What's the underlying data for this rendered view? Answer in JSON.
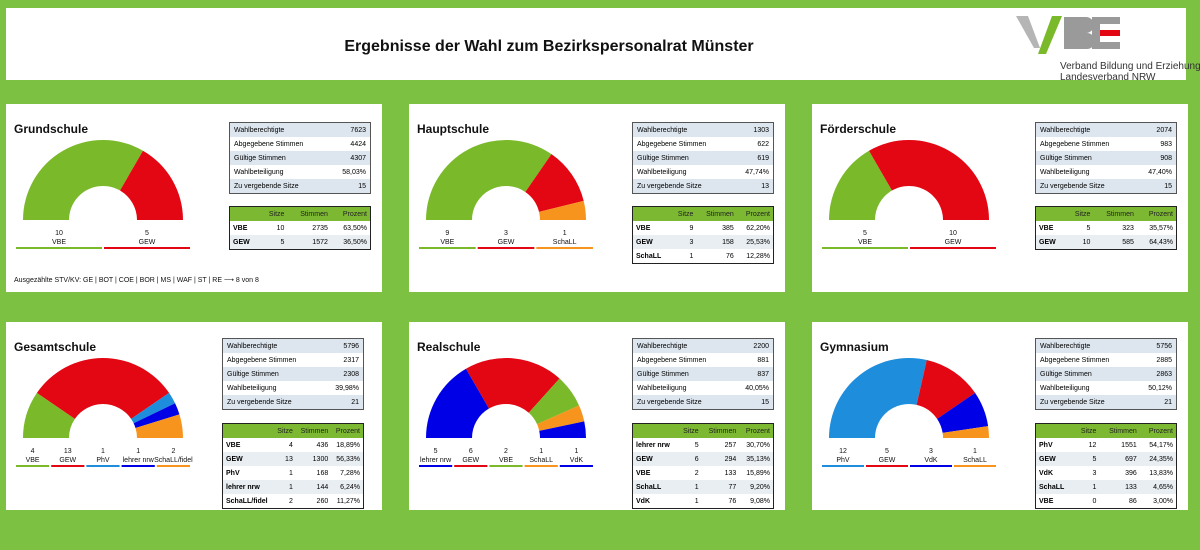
{
  "header": {
    "title": "Ergebnisse der Wahl zum Bezirkspersonalrat Münster",
    "logo_text": "VBE",
    "logo_line1": "Verband Bildung und Erziehung",
    "logo_line2": "Landesverband NRW"
  },
  "colors": {
    "VBE": "#7ab929",
    "GEW": "#e30613",
    "PhV": "#1e8ddc",
    "lehrer nrw": "#0000e6",
    "SchaLL": "#f7941d",
    "VdK": "#0000e6"
  },
  "stat_labels": [
    "Wahlberechtigte",
    "Abgegebene Stimmen",
    "Gültige Stimmen",
    "Wahlbeteiligung",
    "Zu vergebende Sitze"
  ],
  "result_headers": [
    "Sitze",
    "Stimmen",
    "Prozent"
  ],
  "panels": [
    {
      "title": "Grundschule",
      "stats": [
        "7623",
        "4424",
        "4307",
        "58,03%",
        "15"
      ],
      "results": [
        {
          "party": "VBE",
          "seats": "10",
          "votes": "2735",
          "pct": "63,50%"
        },
        {
          "party": "GEW",
          "seats": "5",
          "votes": "1572",
          "pct": "36,50%"
        }
      ],
      "chart_data": {
        "type": "pie",
        "shape": "half-donut",
        "series": [
          {
            "name": "VBE",
            "value": 10,
            "color": "#7ab929"
          },
          {
            "name": "GEW",
            "value": 5,
            "color": "#e30613"
          }
        ]
      },
      "note": "Ausgezählte STV/KV: GE | BOT | COE | BOR | MS | WAF | ST | RE ⟶ 8 von 8"
    },
    {
      "title": "Hauptschule",
      "stats": [
        "1303",
        "622",
        "619",
        "47,74%",
        "13"
      ],
      "results": [
        {
          "party": "VBE",
          "seats": "9",
          "votes": "385",
          "pct": "62,20%"
        },
        {
          "party": "GEW",
          "seats": "3",
          "votes": "158",
          "pct": "25,53%"
        },
        {
          "party": "SchaLL",
          "seats": "1",
          "votes": "76",
          "pct": "12,28%"
        }
      ],
      "chart_data": {
        "type": "pie",
        "shape": "half-donut",
        "series": [
          {
            "name": "VBE",
            "value": 9,
            "color": "#7ab929"
          },
          {
            "name": "GEW",
            "value": 3,
            "color": "#e30613"
          },
          {
            "name": "SchaLL",
            "value": 1,
            "color": "#f7941d"
          }
        ]
      }
    },
    {
      "title": "Förderschule",
      "stats": [
        "2074",
        "983",
        "908",
        "47,40%",
        "15"
      ],
      "results": [
        {
          "party": "VBE",
          "seats": "5",
          "votes": "323",
          "pct": "35,57%"
        },
        {
          "party": "GEW",
          "seats": "10",
          "votes": "585",
          "pct": "64,43%"
        }
      ],
      "chart_data": {
        "type": "pie",
        "shape": "half-donut",
        "series": [
          {
            "name": "VBE",
            "value": 5,
            "color": "#7ab929"
          },
          {
            "name": "GEW",
            "value": 10,
            "color": "#e30613"
          }
        ]
      }
    },
    {
      "title": "Gesamtschule",
      "stats": [
        "5796",
        "2317",
        "2308",
        "39,98%",
        "21"
      ],
      "results": [
        {
          "party": "VBE",
          "seats": "4",
          "votes": "436",
          "pct": "18,89%"
        },
        {
          "party": "GEW",
          "seats": "13",
          "votes": "1300",
          "pct": "56,33%"
        },
        {
          "party": "PhV",
          "seats": "1",
          "votes": "168",
          "pct": "7,28%"
        },
        {
          "party": "lehrer nrw",
          "seats": "1",
          "votes": "144",
          "pct": "6,24%"
        },
        {
          "party": "SchaLL/fidel",
          "seats": "2",
          "votes": "260",
          "pct": "11,27%"
        }
      ],
      "chart_data": {
        "type": "pie",
        "shape": "half-donut",
        "series": [
          {
            "name": "VBE",
            "value": 4,
            "color": "#7ab929"
          },
          {
            "name": "GEW",
            "value": 13,
            "color": "#e30613"
          },
          {
            "name": "PhV",
            "value": 1,
            "color": "#1e8ddc"
          },
          {
            "name": "lehrer nrw",
            "value": 1,
            "color": "#0000e6"
          },
          {
            "name": "SchaLL/fidel",
            "value": 2,
            "color": "#f7941d"
          }
        ]
      }
    },
    {
      "title": "Realschule",
      "stats": [
        "2200",
        "881",
        "837",
        "40,05%",
        "15"
      ],
      "results": [
        {
          "party": "lehrer nrw",
          "seats": "5",
          "votes": "257",
          "pct": "30,70%"
        },
        {
          "party": "GEW",
          "seats": "6",
          "votes": "294",
          "pct": "35,13%"
        },
        {
          "party": "VBE",
          "seats": "2",
          "votes": "133",
          "pct": "15,89%"
        },
        {
          "party": "SchaLL",
          "seats": "1",
          "votes": "77",
          "pct": "9,20%"
        },
        {
          "party": "VdK",
          "seats": "1",
          "votes": "76",
          "pct": "9,08%"
        }
      ],
      "chart_data": {
        "type": "pie",
        "shape": "half-donut",
        "series": [
          {
            "name": "lehrer nrw",
            "value": 5,
            "color": "#0000e6"
          },
          {
            "name": "GEW",
            "value": 6,
            "color": "#e30613"
          },
          {
            "name": "VBE",
            "value": 2,
            "color": "#7ab929"
          },
          {
            "name": "SchaLL",
            "value": 1,
            "color": "#f7941d"
          },
          {
            "name": "VdK",
            "value": 1,
            "color": "#0000e6"
          }
        ]
      }
    },
    {
      "title": "Gymnasium",
      "stats": [
        "5756",
        "2885",
        "2863",
        "50,12%",
        "21"
      ],
      "results": [
        {
          "party": "PhV",
          "seats": "12",
          "votes": "1551",
          "pct": "54,17%"
        },
        {
          "party": "GEW",
          "seats": "5",
          "votes": "697",
          "pct": "24,35%"
        },
        {
          "party": "VdK",
          "seats": "3",
          "votes": "396",
          "pct": "13,83%"
        },
        {
          "party": "SchaLL",
          "seats": "1",
          "votes": "133",
          "pct": "4,65%"
        },
        {
          "party": "VBE",
          "seats": "0",
          "votes": "86",
          "pct": "3,00%"
        }
      ],
      "chart_data": {
        "type": "pie",
        "shape": "half-donut",
        "series": [
          {
            "name": "PhV",
            "value": 12,
            "color": "#1e8ddc"
          },
          {
            "name": "GEW",
            "value": 5,
            "color": "#e30613"
          },
          {
            "name": "VdK",
            "value": 3,
            "color": "#0000e6"
          },
          {
            "name": "SchaLL",
            "value": 1,
            "color": "#f7941d"
          }
        ]
      }
    }
  ]
}
